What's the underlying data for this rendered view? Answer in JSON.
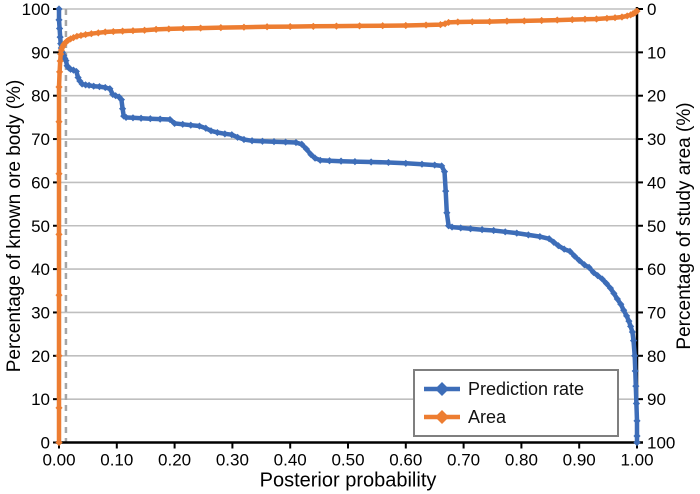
{
  "chart_data": {
    "type": "line",
    "title": "",
    "x_axis": {
      "title": "Posterior probability",
      "min": 0,
      "max": 1,
      "tick_values": [
        0.0,
        0.1,
        0.2,
        0.3,
        0.4,
        0.5,
        0.6,
        0.7,
        0.8,
        0.9,
        1.0
      ],
      "tick_labels": [
        "0.00",
        "0.10",
        "0.20",
        "0.30",
        "0.40",
        "0.50",
        "0.60",
        "0.70",
        "0.80",
        "0.90",
        "1.00"
      ]
    },
    "y_axis_left": {
      "title": "Percentage of known ore body (%)",
      "min": 0,
      "max": 100,
      "inverted": false,
      "tick_values": [
        0,
        10,
        20,
        30,
        40,
        50,
        60,
        70,
        80,
        90,
        100
      ],
      "tick_labels": [
        "0",
        "10",
        "20",
        "30",
        "40",
        "50",
        "60",
        "70",
        "80",
        "90",
        "100"
      ]
    },
    "y_axis_right": {
      "title": "Percentage of study area (%)",
      "min": 0,
      "max": 100,
      "inverted": true,
      "tick_values": [
        0,
        10,
        20,
        30,
        40,
        50,
        60,
        70,
        80,
        90,
        100
      ],
      "tick_labels": [
        "0",
        "10",
        "20",
        "30",
        "40",
        "50",
        "60",
        "70",
        "80",
        "90",
        "100"
      ]
    },
    "grid": "horizontal-only",
    "gridline_color": "#bfbfbf",
    "axis_color": "#000000",
    "reference_line": {
      "x": 0.012,
      "style": "dashed",
      "color": "#a6a6a6"
    },
    "legend": {
      "position": "inside-bottom-right",
      "border_color": "#7f7f7f"
    },
    "series": [
      {
        "name": "Prediction rate",
        "axis": "left",
        "color": "#3d6db8",
        "marker": "diamond",
        "points": [
          [
            0.0,
            100
          ],
          [
            0.0,
            97.5
          ],
          [
            0.001,
            95.5
          ],
          [
            0.002,
            93.5
          ],
          [
            0.003,
            92
          ],
          [
            0.004,
            91
          ],
          [
            0.006,
            90
          ],
          [
            0.008,
            89.3
          ],
          [
            0.01,
            88.6
          ],
          [
            0.012,
            88.1
          ],
          [
            0.014,
            86.9
          ],
          [
            0.017,
            86.4
          ],
          [
            0.02,
            86.1
          ],
          [
            0.025,
            85.9
          ],
          [
            0.03,
            85.6
          ],
          [
            0.033,
            84.2
          ],
          [
            0.036,
            83.4
          ],
          [
            0.04,
            82.7
          ],
          [
            0.046,
            82.5
          ],
          [
            0.052,
            82.4
          ],
          [
            0.06,
            82.2
          ],
          [
            0.07,
            82.1
          ],
          [
            0.08,
            81.9
          ],
          [
            0.088,
            81.6
          ],
          [
            0.093,
            80.3
          ],
          [
            0.098,
            80.0
          ],
          [
            0.104,
            79.7
          ],
          [
            0.108,
            79.1
          ],
          [
            0.11,
            77.0
          ],
          [
            0.112,
            75.3
          ],
          [
            0.116,
            75.0
          ],
          [
            0.128,
            74.9
          ],
          [
            0.142,
            74.8
          ],
          [
            0.158,
            74.7
          ],
          [
            0.175,
            74.6
          ],
          [
            0.192,
            74.5
          ],
          [
            0.2,
            73.6
          ],
          [
            0.214,
            73.4
          ],
          [
            0.228,
            73.2
          ],
          [
            0.243,
            73.0
          ],
          [
            0.254,
            72.5
          ],
          [
            0.263,
            71.9
          ],
          [
            0.274,
            71.5
          ],
          [
            0.287,
            71.2
          ],
          [
            0.299,
            71.0
          ],
          [
            0.309,
            70.4
          ],
          [
            0.32,
            69.9
          ],
          [
            0.334,
            69.6
          ],
          [
            0.352,
            69.5
          ],
          [
            0.372,
            69.4
          ],
          [
            0.392,
            69.3
          ],
          [
            0.41,
            69.2
          ],
          [
            0.42,
            68.8
          ],
          [
            0.428,
            67.7
          ],
          [
            0.436,
            66.4
          ],
          [
            0.443,
            65.6
          ],
          [
            0.452,
            65.1
          ],
          [
            0.468,
            65.0
          ],
          [
            0.488,
            64.9
          ],
          [
            0.512,
            64.8
          ],
          [
            0.54,
            64.7
          ],
          [
            0.57,
            64.6
          ],
          [
            0.6,
            64.4
          ],
          [
            0.628,
            64.2
          ],
          [
            0.65,
            64.0
          ],
          [
            0.662,
            63.8
          ],
          [
            0.667,
            62.5
          ],
          [
            0.669,
            58.0
          ],
          [
            0.671,
            53.0
          ],
          [
            0.674,
            50.0
          ],
          [
            0.68,
            49.7
          ],
          [
            0.695,
            49.5
          ],
          [
            0.712,
            49.3
          ],
          [
            0.732,
            49.1
          ],
          [
            0.752,
            48.9
          ],
          [
            0.772,
            48.6
          ],
          [
            0.792,
            48.3
          ],
          [
            0.812,
            47.9
          ],
          [
            0.832,
            47.5
          ],
          [
            0.848,
            47.0
          ],
          [
            0.856,
            46.2
          ],
          [
            0.864,
            45.4
          ],
          [
            0.874,
            44.6
          ],
          [
            0.884,
            44.1
          ],
          [
            0.892,
            43.0
          ],
          [
            0.9,
            42.0
          ],
          [
            0.909,
            41.0
          ],
          [
            0.917,
            40.4
          ],
          [
            0.925,
            39.2
          ],
          [
            0.932,
            38.5
          ],
          [
            0.94,
            37.7
          ],
          [
            0.947,
            36.7
          ],
          [
            0.954,
            35.6
          ],
          [
            0.96,
            34.4
          ],
          [
            0.966,
            33.1
          ],
          [
            0.972,
            31.9
          ],
          [
            0.977,
            30.5
          ],
          [
            0.982,
            29.2
          ],
          [
            0.986,
            28.0
          ],
          [
            0.989,
            26.8
          ],
          [
            0.992,
            25.5
          ],
          [
            0.994,
            23.5
          ],
          [
            0.996,
            20.0
          ],
          [
            0.997,
            16.5
          ],
          [
            0.998,
            13.0
          ],
          [
            0.999,
            9.0
          ],
          [
            1.0,
            5.0
          ],
          [
            1.0,
            1.5
          ],
          [
            1.0,
            0
          ]
        ]
      },
      {
        "name": "Area",
        "axis": "right",
        "color": "#ed7d31",
        "marker": "diamond",
        "points": [
          [
            0.0,
            100
          ],
          [
            0.0,
            92
          ],
          [
            0.0,
            80
          ],
          [
            0.0,
            66
          ],
          [
            0.0,
            52
          ],
          [
            0.0,
            38
          ],
          [
            0.0,
            26
          ],
          [
            0.0,
            18
          ],
          [
            0.001,
            14.5
          ],
          [
            0.002,
            12.0
          ],
          [
            0.003,
            10.4
          ],
          [
            0.004,
            9.5
          ],
          [
            0.006,
            8.8
          ],
          [
            0.008,
            8.3
          ],
          [
            0.01,
            7.9
          ],
          [
            0.013,
            7.5
          ],
          [
            0.016,
            7.2
          ],
          [
            0.02,
            6.9
          ],
          [
            0.025,
            6.6
          ],
          [
            0.031,
            6.3
          ],
          [
            0.038,
            6.1
          ],
          [
            0.046,
            5.9
          ],
          [
            0.056,
            5.7
          ],
          [
            0.068,
            5.5
          ],
          [
            0.08,
            5.3
          ],
          [
            0.094,
            5.2
          ],
          [
            0.11,
            5.1
          ],
          [
            0.128,
            5.0
          ],
          [
            0.148,
            4.9
          ],
          [
            0.168,
            4.7
          ],
          [
            0.19,
            4.6
          ],
          [
            0.215,
            4.5
          ],
          [
            0.245,
            4.4
          ],
          [
            0.28,
            4.3
          ],
          [
            0.32,
            4.2
          ],
          [
            0.36,
            4.1
          ],
          [
            0.4,
            4.05
          ],
          [
            0.44,
            4.0
          ],
          [
            0.48,
            3.95
          ],
          [
            0.52,
            3.9
          ],
          [
            0.56,
            3.85
          ],
          [
            0.6,
            3.8
          ],
          [
            0.635,
            3.7
          ],
          [
            0.66,
            3.6
          ],
          [
            0.668,
            3.4
          ],
          [
            0.674,
            3.1
          ],
          [
            0.69,
            3.0
          ],
          [
            0.715,
            2.95
          ],
          [
            0.745,
            2.9
          ],
          [
            0.775,
            2.8
          ],
          [
            0.805,
            2.75
          ],
          [
            0.835,
            2.65
          ],
          [
            0.862,
            2.55
          ],
          [
            0.888,
            2.45
          ],
          [
            0.91,
            2.35
          ],
          [
            0.93,
            2.3
          ],
          [
            0.948,
            2.15
          ],
          [
            0.962,
            2.0
          ],
          [
            0.974,
            1.85
          ],
          [
            0.983,
            1.6
          ],
          [
            0.989,
            1.35
          ],
          [
            0.993,
            1.1
          ],
          [
            0.996,
            0.9
          ],
          [
            0.998,
            0.7
          ],
          [
            1.0,
            0.5
          ]
        ]
      }
    ]
  }
}
